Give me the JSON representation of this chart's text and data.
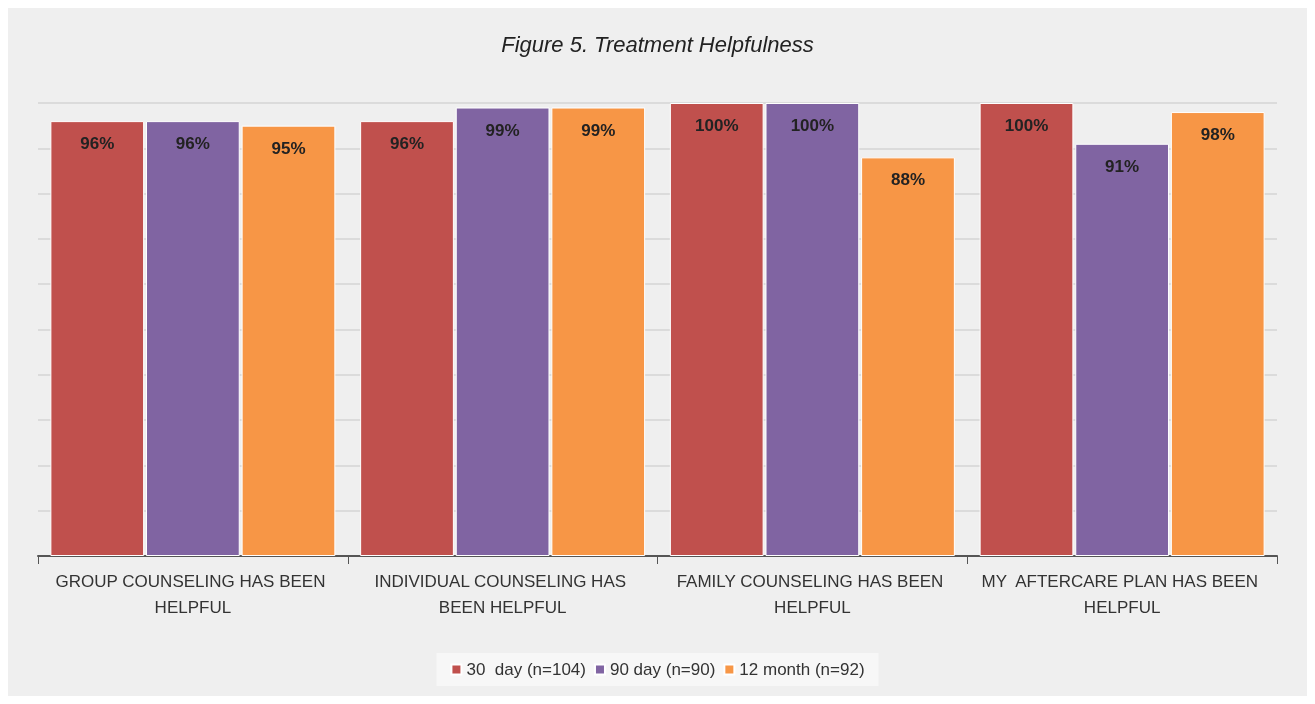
{
  "chart_data": {
    "type": "bar",
    "title": "Figure 5. Treatment Helpfulness",
    "categories": [
      "GROUP COUNSELING HAS BEEN HELPFUL",
      "INDIVIDUAL COUNSELING HAS BEEN HELPFUL",
      "FAMILY COUNSELING HAS BEEN HELPFUL",
      "MY  AFTERCARE PLAN HAS BEEN HELPFUL"
    ],
    "series": [
      {
        "name": "30  day (n=104)",
        "color": "#c0504d",
        "values": [
          96,
          96,
          100,
          100
        ],
        "value_labels": [
          "96%",
          "96%",
          "100%",
          "100%"
        ]
      },
      {
        "name": "90 day (n=90)",
        "color": "#8064a2",
        "values": [
          96,
          99,
          100,
          91
        ],
        "value_labels": [
          "96%",
          "99%",
          "100%",
          "91%"
        ]
      },
      {
        "name": "12 month (n=92)",
        "color": "#f79646",
        "values": [
          95,
          99,
          88,
          98
        ],
        "value_labels": [
          "95%",
          "99%",
          "88%",
          "98%"
        ]
      }
    ],
    "ylim": [
      0,
      100
    ],
    "yticks": [
      {
        "value": 0,
        "label": null
      },
      {
        "value": 10,
        "label": null
      },
      {
        "value": 20,
        "label": null
      },
      {
        "value": 30,
        "label": null
      },
      {
        "value": 40,
        "label": null
      },
      {
        "value": 50,
        "label": null
      },
      {
        "value": 60,
        "label": null
      },
      {
        "value": 70,
        "label": null
      },
      {
        "value": 80,
        "label": null
      },
      {
        "value": 90,
        "label": null
      },
      {
        "value": 100,
        "label": null
      }
    ],
    "tick_labels": "x",
    "grid": "y",
    "legend": "bottom"
  }
}
